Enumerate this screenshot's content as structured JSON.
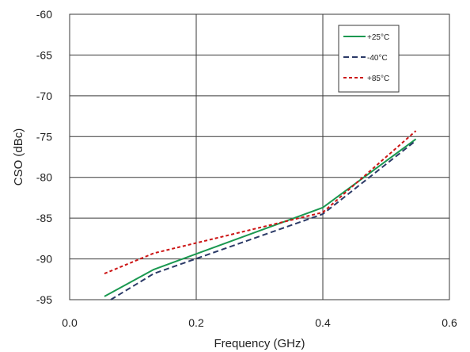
{
  "chart_data": {
    "type": "line",
    "xlabel": "Frequency (GHz)",
    "ylabel": "CSO (dBc)",
    "xlim": [
      0.0,
      0.6
    ],
    "ylim": [
      -95,
      -60
    ],
    "x_ticks": [
      0.0,
      0.2,
      0.4,
      0.6
    ],
    "x_tick_labels": [
      "0.0",
      "0.2",
      "0.4",
      "0.6"
    ],
    "y_ticks": [
      -60,
      -65,
      -70,
      -75,
      -80,
      -85,
      -90,
      -95
    ],
    "y_tick_labels": [
      "-60",
      "-65",
      "-70",
      "-75",
      "-80",
      "-85",
      "-90",
      "-95"
    ],
    "grid": true,
    "legend_position": "top-right",
    "series": [
      {
        "name": "+25°C",
        "color": "#1a9850",
        "dash": "solid",
        "x": [
          0.055,
          0.133,
          0.4,
          0.547
        ],
        "y": [
          -94.6,
          -91.3,
          -83.7,
          -75.3
        ]
      },
      {
        "name": "-40°C",
        "color": "#2b3a67",
        "dash": "dashed",
        "x": [
          0.065,
          0.133,
          0.4,
          0.547
        ],
        "y": [
          -95.0,
          -91.8,
          -84.5,
          -75.5
        ]
      },
      {
        "name": "+85°C",
        "color": "#cc1414",
        "dash": "dotted",
        "x": [
          0.055,
          0.133,
          0.4,
          0.547
        ],
        "y": [
          -91.8,
          -89.3,
          -84.3,
          -74.3
        ]
      }
    ]
  }
}
